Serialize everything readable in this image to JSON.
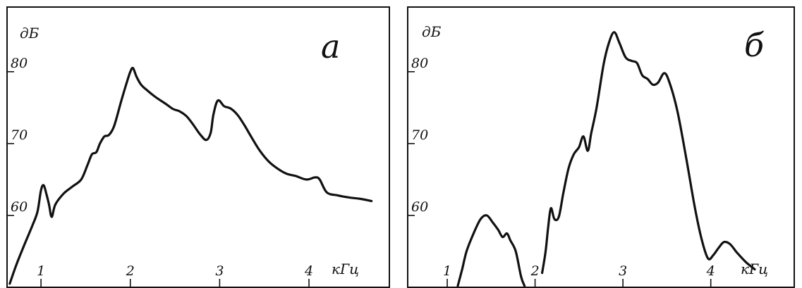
{
  "chart_data": [
    {
      "type": "line",
      "panel_label": "а",
      "ylabel": "дБ",
      "xlabel": "кГц",
      "x_ticks": [
        1,
        2,
        3,
        4
      ],
      "x_tick_labels": [
        "1",
        "2",
        "3",
        "4"
      ],
      "y_ticks": [
        60,
        70,
        80
      ],
      "y_tick_labels": [
        "60",
        "70",
        "80"
      ],
      "xlim": [
        0.62,
        4.9
      ],
      "ylim": [
        50,
        89
      ],
      "grid": false,
      "series": [
        {
          "segments": [
            [
              [
                0.65,
                50.5
              ],
              [
                0.72,
                53.0
              ],
              [
                0.8,
                55.5
              ],
              [
                0.9,
                58.5
              ],
              [
                0.96,
                60.5
              ],
              [
                1.0,
                63.5
              ],
              [
                1.03,
                64.2
              ],
              [
                1.06,
                63.0
              ],
              [
                1.09,
                61.5
              ],
              [
                1.12,
                59.8
              ],
              [
                1.16,
                61.5
              ],
              [
                1.25,
                63.0
              ],
              [
                1.35,
                64.0
              ],
              [
                1.45,
                65.0
              ],
              [
                1.52,
                67.0
              ],
              [
                1.57,
                68.5
              ],
              [
                1.62,
                68.8
              ],
              [
                1.66,
                70.0
              ],
              [
                1.71,
                71.0
              ],
              [
                1.76,
                71.2
              ],
              [
                1.82,
                72.5
              ],
              [
                1.9,
                76.0
              ],
              [
                1.96,
                78.5
              ],
              [
                2.0,
                80.0
              ],
              [
                2.03,
                80.5
              ],
              [
                2.07,
                79.3
              ],
              [
                2.12,
                78.2
              ],
              [
                2.18,
                77.5
              ],
              [
                2.28,
                76.5
              ],
              [
                2.4,
                75.5
              ],
              [
                2.48,
                74.8
              ],
              [
                2.55,
                74.5
              ],
              [
                2.63,
                73.8
              ],
              [
                2.7,
                72.7
              ],
              [
                2.78,
                71.3
              ],
              [
                2.85,
                70.5
              ],
              [
                2.9,
                71.5
              ],
              [
                2.93,
                74.0
              ],
              [
                2.98,
                76.0
              ],
              [
                3.05,
                75.2
              ],
              [
                3.12,
                74.9
              ],
              [
                3.2,
                74.0
              ],
              [
                3.28,
                72.5
              ],
              [
                3.36,
                70.8
              ],
              [
                3.45,
                69.0
              ],
              [
                3.55,
                67.5
              ],
              [
                3.65,
                66.5
              ],
              [
                3.75,
                65.8
              ],
              [
                3.85,
                65.5
              ],
              [
                3.97,
                65.0
              ],
              [
                4.07,
                65.3
              ],
              [
                4.12,
                65.0
              ],
              [
                4.2,
                63.2
              ],
              [
                4.32,
                62.8
              ],
              [
                4.45,
                62.5
              ],
              [
                4.58,
                62.3
              ],
              [
                4.7,
                62.0
              ]
            ]
          ]
        }
      ]
    },
    {
      "type": "line",
      "panel_label": "б",
      "ylabel": "дБ",
      "xlabel": "кГц",
      "x_ticks": [
        1,
        2,
        3,
        4
      ],
      "x_tick_labels": [
        "1",
        "2",
        "3",
        "4"
      ],
      "y_ticks": [
        60,
        70,
        80
      ],
      "y_tick_labels": [
        "60",
        "70",
        "80"
      ],
      "xlim": [
        0.55,
        4.95
      ],
      "ylim": [
        50,
        89
      ],
      "grid": false,
      "series": [
        {
          "segments": [
            [
              [
                1.12,
                50.2
              ],
              [
                1.17,
                52.5
              ],
              [
                1.22,
                55.0
              ],
              [
                1.3,
                57.5
              ],
              [
                1.38,
                59.5
              ],
              [
                1.45,
                60.0
              ],
              [
                1.52,
                59.0
              ],
              [
                1.58,
                58.0
              ],
              [
                1.63,
                57.0
              ],
              [
                1.68,
                57.5
              ],
              [
                1.72,
                56.5
              ],
              [
                1.78,
                55.0
              ],
              [
                1.84,
                51.5
              ],
              [
                1.88,
                50.2
              ]
            ],
            [
              [
                2.08,
                52.0
              ],
              [
                2.12,
                55.0
              ],
              [
                2.15,
                58.5
              ],
              [
                2.18,
                61.0
              ],
              [
                2.22,
                59.5
              ],
              [
                2.27,
                59.8
              ],
              [
                2.32,
                63.0
              ],
              [
                2.38,
                66.5
              ],
              [
                2.44,
                68.5
              ],
              [
                2.5,
                69.5
              ],
              [
                2.55,
                71.0
              ],
              [
                2.6,
                69.0
              ],
              [
                2.64,
                71.5
              ],
              [
                2.7,
                75.0
              ],
              [
                2.78,
                81.0
              ],
              [
                2.84,
                84.0
              ],
              [
                2.9,
                85.5
              ],
              [
                2.96,
                84.0
              ],
              [
                3.03,
                82.0
              ],
              [
                3.1,
                81.5
              ],
              [
                3.16,
                81.2
              ],
              [
                3.22,
                79.5
              ],
              [
                3.28,
                79.0
              ],
              [
                3.34,
                78.2
              ],
              [
                3.4,
                78.5
              ],
              [
                3.47,
                79.8
              ],
              [
                3.53,
                78.5
              ],
              [
                3.62,
                74.5
              ],
              [
                3.72,
                68.0
              ],
              [
                3.82,
                61.0
              ],
              [
                3.9,
                56.5
              ],
              [
                3.97,
                54.0
              ],
              [
                4.03,
                54.5
              ],
              [
                4.09,
                55.5
              ],
              [
                4.15,
                56.3
              ],
              [
                4.22,
                56.0
              ],
              [
                4.3,
                54.8
              ],
              [
                4.4,
                53.5
              ],
              [
                4.5,
                52.5
              ]
            ]
          ]
        }
      ]
    }
  ]
}
